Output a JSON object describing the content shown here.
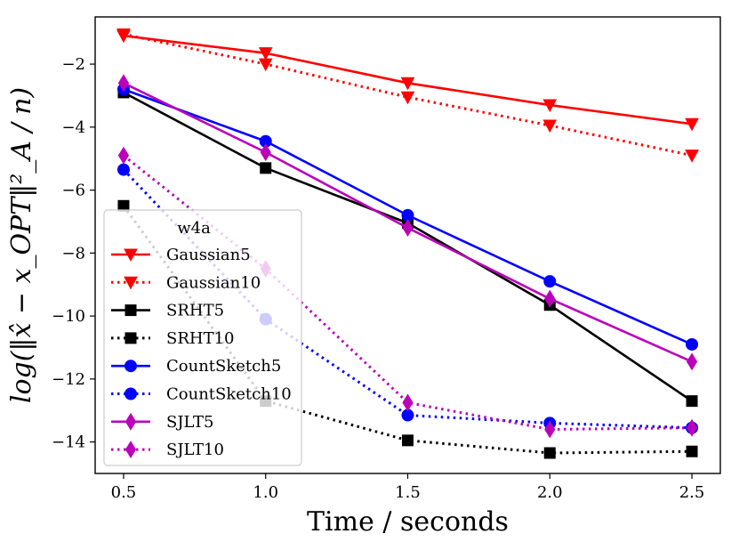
{
  "chart_data": {
    "type": "line",
    "title": "",
    "xlabel": "Time / seconds",
    "ylabel": "log(‖x̂ − x_OPT‖²_A / n)",
    "xlim": [
      0.4,
      2.6
    ],
    "ylim": [
      -15,
      -0.5
    ],
    "x_ticks": [
      0.5,
      1.0,
      1.5,
      2.0,
      2.5
    ],
    "x_tick_labels": [
      "0.5",
      "1.0",
      "1.5",
      "2.0",
      "2.5"
    ],
    "y_ticks": [
      -2,
      -4,
      -6,
      -8,
      -10,
      -12,
      -14
    ],
    "y_tick_labels": [
      "−2",
      "−4",
      "−6",
      "−8",
      "−10",
      "−12",
      "−14"
    ],
    "grid": false,
    "legend": {
      "title": "w4a",
      "placement": "lower-left"
    },
    "x": [
      0.5,
      1.0,
      1.5,
      2.0,
      2.5
    ],
    "series": [
      {
        "name": "Gaussian5",
        "color": "#ff0000",
        "linestyle": "solid",
        "marker": "triangle-down",
        "values": [
          -1.1,
          -1.65,
          -2.6,
          -3.3,
          -3.9
        ]
      },
      {
        "name": "Gaussian10",
        "color": "#ff0000",
        "linestyle": "dotted",
        "marker": "triangle-down",
        "values": [
          -1.05,
          -2.0,
          -3.05,
          -3.95,
          -4.9
        ]
      },
      {
        "name": "SRHT5",
        "color": "#000000",
        "linestyle": "solid",
        "marker": "square",
        "values": [
          -2.9,
          -5.3,
          -7.05,
          -9.65,
          -12.7
        ]
      },
      {
        "name": "SRHT10",
        "color": "#000000",
        "linestyle": "dotted",
        "marker": "square",
        "values": [
          -6.5,
          -12.7,
          -13.95,
          -14.35,
          -14.3
        ]
      },
      {
        "name": "CountSketch5",
        "color": "#0000ff",
        "linestyle": "solid",
        "marker": "circle",
        "values": [
          -2.8,
          -4.45,
          -6.8,
          -8.9,
          -10.9
        ]
      },
      {
        "name": "CountSketch10",
        "color": "#0000ff",
        "linestyle": "dotted",
        "marker": "circle",
        "values": [
          -5.35,
          -10.1,
          -13.15,
          -13.4,
          -13.55
        ]
      },
      {
        "name": "SJLT5",
        "color": "#bb00bb",
        "linestyle": "solid",
        "marker": "diamond",
        "values": [
          -2.6,
          -4.8,
          -7.2,
          -9.45,
          -11.45
        ]
      },
      {
        "name": "SJLT10",
        "color": "#bb00bb",
        "linestyle": "dotted",
        "marker": "diamond",
        "values": [
          -4.9,
          -8.5,
          -12.75,
          -13.6,
          -13.55
        ]
      }
    ]
  }
}
